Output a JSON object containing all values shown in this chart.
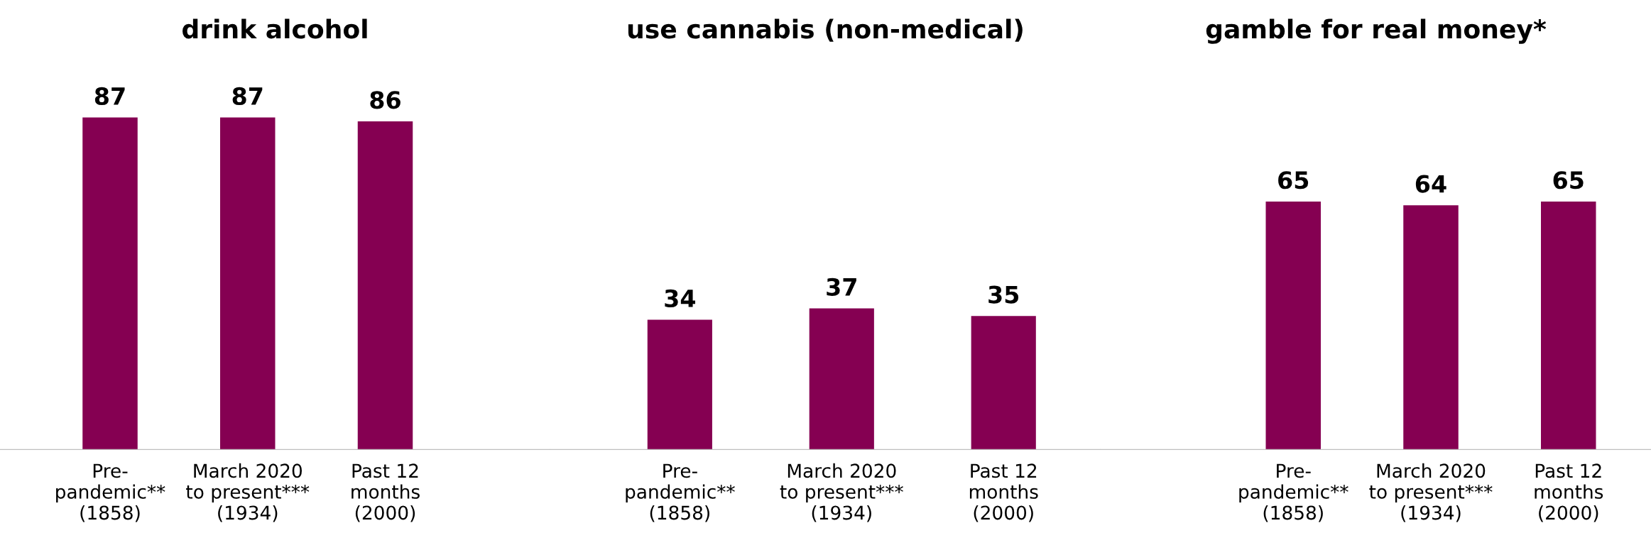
{
  "chart_data": [
    {
      "type": "bar",
      "title": "drink alcohol",
      "categories": [
        "Pre-\npandemic**\n(1858)",
        "March 2020\nto present***\n(1934)",
        "Past 12\nmonths\n(2000)"
      ],
      "values": [
        87,
        87,
        86
      ],
      "color": "#850052",
      "data_labels": true,
      "tick_labels": "x"
    },
    {
      "type": "bar",
      "title": "use cannabis (non-medical)",
      "categories": [
        "Pre-\npandemic**\n(1858)",
        "March 2020\nto present***\n(1934)",
        "Past 12\nmonths\n(2000)"
      ],
      "values": [
        34,
        37,
        35
      ],
      "color": "#850052",
      "data_labels": true,
      "tick_labels": "x"
    },
    {
      "type": "bar",
      "title": "gamble for real money*",
      "categories": [
        "Pre-\npandemic**\n(1858)",
        "March 2020\nto present***\n(1934)",
        "Past 12\nmonths\n(2000)"
      ],
      "values": [
        65,
        64,
        65
      ],
      "color": "#850052",
      "data_labels": true,
      "tick_labels": "x"
    }
  ]
}
